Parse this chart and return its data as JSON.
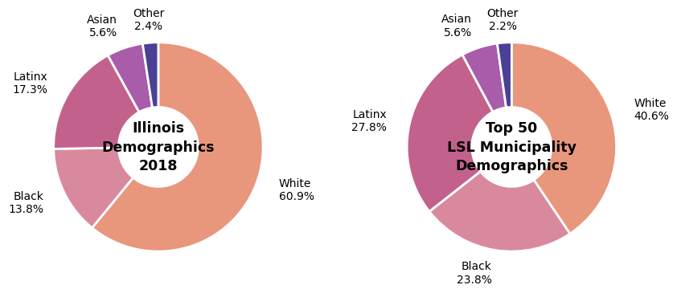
{
  "chart1": {
    "title": "Illinois\nDemographics\n2018",
    "labels": [
      "White",
      "Black",
      "Latinx",
      "Asian",
      "Other"
    ],
    "values": [
      60.9,
      13.8,
      17.3,
      5.6,
      2.4
    ],
    "colors": [
      "#E8967C",
      "#D9899E",
      "#C2628C",
      "#A85CAA",
      "#4A4095"
    ],
    "pct_labels": [
      "60.9%",
      "13.8%",
      "17.3%",
      "5.6%",
      "2.4%"
    ]
  },
  "chart2": {
    "title": "Top 50\nLSL Municipality\nDemographics",
    "labels": [
      "White",
      "Black",
      "Latinx",
      "Asian",
      "Other"
    ],
    "values": [
      40.6,
      23.8,
      27.8,
      5.6,
      2.2
    ],
    "colors": [
      "#E8967C",
      "#D9899E",
      "#C2628C",
      "#A85CAA",
      "#4A4095"
    ],
    "pct_labels": [
      "40.6%",
      "23.8%",
      "27.8%",
      "5.6%",
      "2.2%"
    ]
  },
  "background_color": "#ffffff",
  "title_fontsize": 12.5,
  "label_fontsize": 10,
  "donut_width": 0.62
}
